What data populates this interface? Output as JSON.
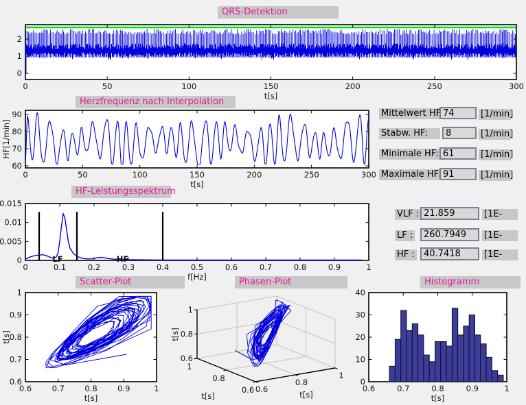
{
  "colors": {
    "background": "#f0f0f0",
    "title_text": "#e5189a",
    "title_strip": "#c8c8c8",
    "field_bg": "#d9d9d9",
    "field_border": "#7d7d97",
    "plot_line_blue": "#0000dd",
    "threshold_green": "#00e400",
    "hist_fill": "#3c3c9c",
    "band_label_red": "#e64545"
  },
  "hf_stats": {
    "rows": [
      {
        "label": "Mittelwert HF:",
        "value": "74",
        "unit": "[1/min]"
      },
      {
        "label": "Stabw. HF:",
        "value": "8",
        "unit": "[1/min]"
      },
      {
        "label": "Minimale HF:",
        "value": "61",
        "unit": "[1/min]"
      },
      {
        "label": "Maximale HF:",
        "value": "91",
        "unit": "[1/min]"
      }
    ]
  },
  "spectral_stats": {
    "rows": [
      {
        "label": "VLF :",
        "value": "21.859",
        "unit": "[1E-"
      },
      {
        "label": "LF :",
        "value": "260.7949",
        "unit": "[1E-"
      },
      {
        "label": "HF :",
        "value": "40.7418",
        "unit": "[1E-"
      }
    ]
  },
  "chart_data": [
    {
      "id": "qrs",
      "type": "line",
      "title": "QRS-Detektion",
      "xlabel": "t[s]",
      "xlim": [
        0,
        300
      ],
      "xticks": [
        0,
        50,
        100,
        150,
        200,
        250,
        300
      ],
      "ylim": [
        -0.36,
        2.84
      ],
      "yticks": [
        0,
        1,
        2
      ],
      "threshold": {
        "value": 2.68,
        "color": "#00e400"
      },
      "signal": {
        "color": "#0000dd",
        "baseline_band": [
          1.0,
          1.7
        ],
        "qrs_peak_range": [
          2.25,
          2.6
        ],
        "approx_beats": 370
      }
    },
    {
      "id": "heart-rate",
      "type": "line",
      "title": "Herzfrequenz nach Interpolation",
      "xlabel": "t[s]",
      "ylabel": "HF[1/min]",
      "xlim": [
        0,
        300
      ],
      "xticks": [
        0,
        50,
        100,
        150,
        200,
        250,
        300
      ],
      "ylim": [
        58.8,
        92.4
      ],
      "yticks": [
        60,
        70,
        80,
        90
      ],
      "series": {
        "color": "#0000dd",
        "mean": 74,
        "std": 8,
        "min": 61,
        "max": 91,
        "dominant_period_s": 9.6,
        "start_value": 60
      }
    },
    {
      "id": "spectrum",
      "type": "line",
      "title": "HF-Leistungsspektrum",
      "xlabel": "f[Hz]",
      "xlim": [
        0,
        1
      ],
      "xticks": [
        0,
        0.1,
        0.2,
        0.3,
        0.4,
        0.5,
        0.6,
        0.7,
        0.8,
        0.9,
        1
      ],
      "ylim": [
        0,
        0.015
      ],
      "yticks": [
        0,
        0.005,
        0.01,
        0.015
      ],
      "line_color": "#0000dd",
      "points": [
        [
          0,
          0.0003
        ],
        [
          0.01,
          0.0008
        ],
        [
          0.02,
          0.0011
        ],
        [
          0.03,
          0.0013
        ],
        [
          0.04,
          0.0014
        ],
        [
          0.05,
          0.0015
        ],
        [
          0.06,
          0.0013
        ],
        [
          0.07,
          0.0009
        ],
        [
          0.08,
          0.0006
        ],
        [
          0.09,
          0.0009
        ],
        [
          0.095,
          0.002
        ],
        [
          0.1,
          0.005
        ],
        [
          0.105,
          0.009
        ],
        [
          0.11,
          0.0123
        ],
        [
          0.115,
          0.0112
        ],
        [
          0.12,
          0.008
        ],
        [
          0.125,
          0.005
        ],
        [
          0.13,
          0.0032
        ],
        [
          0.14,
          0.0018
        ],
        [
          0.15,
          0.0011
        ],
        [
          0.16,
          0.0007
        ],
        [
          0.17,
          0.0005
        ],
        [
          0.18,
          0.0004
        ],
        [
          0.19,
          0.0004
        ],
        [
          0.2,
          0.0005
        ],
        [
          0.21,
          0.0007
        ],
        [
          0.22,
          0.0008
        ],
        [
          0.23,
          0.0007
        ],
        [
          0.24,
          0.0005
        ],
        [
          0.25,
          0.0004
        ],
        [
          0.26,
          0.0003
        ],
        [
          0.28,
          0.0003
        ],
        [
          0.3,
          0.0002
        ],
        [
          0.35,
          0.00015
        ],
        [
          0.4,
          0.0001
        ],
        [
          0.5,
          0.0001
        ],
        [
          0.6,
          0.0001
        ],
        [
          0.7,
          0.0001
        ],
        [
          0.8,
          0.0001
        ],
        [
          0.9,
          0.0001
        ],
        [
          0.98,
          0.0001
        ]
      ],
      "vlines": {
        "values": [
          0.04,
          0.15,
          0.4
        ],
        "top": 0.0128,
        "color": "#000000"
      },
      "band_labels": [
        {
          "text": "LF",
          "f": 0.094
        },
        {
          "text": "HF",
          "f": 0.283
        }
      ],
      "band_label_color": "#e64545"
    },
    {
      "id": "scatter",
      "type": "scatter",
      "title": "Scatter-Plot",
      "xlabel": "t[s]",
      "ylabel": "t[s]",
      "xlim": [
        0.6,
        1
      ],
      "xticks": [
        0.6,
        0.7,
        0.8,
        0.9,
        1
      ],
      "ylim": [
        0.6,
        1
      ],
      "yticks": [
        0.6,
        0.7,
        0.8,
        0.9,
        1
      ],
      "line_color": "#0000dd",
      "data_range": {
        "x": [
          0.66,
          0.99
        ],
        "y": [
          0.65,
          0.98
        ]
      }
    },
    {
      "id": "phase3d",
      "type": "line3d",
      "title": "Phasen-Plot",
      "xlabel": "t[s]",
      "ylabel": "t[s]",
      "zlabel": "t[s]",
      "lim": [
        0.6,
        1
      ],
      "ticks": [
        0.6,
        0.8,
        1
      ],
      "line_color": "#0000dd"
    },
    {
      "id": "histogram",
      "type": "bar",
      "title": "Histogramm",
      "xlabel": "t[s]",
      "xlim": [
        0.6,
        1
      ],
      "xticks": [
        0.6,
        0.7,
        0.8,
        0.9,
        1
      ],
      "ylim": [
        0,
        40
      ],
      "yticks": [
        0,
        10,
        20,
        30,
        40
      ],
      "bin_start": 0.66,
      "bin_width": 0.0165,
      "counts": [
        7,
        19,
        32,
        23,
        26,
        21,
        12,
        9,
        18,
        18,
        16,
        33,
        21,
        25,
        30,
        21,
        17,
        11,
        5,
        3
      ],
      "bar_fill": "#3c3c9c",
      "bar_stroke": "#111111"
    }
  ]
}
